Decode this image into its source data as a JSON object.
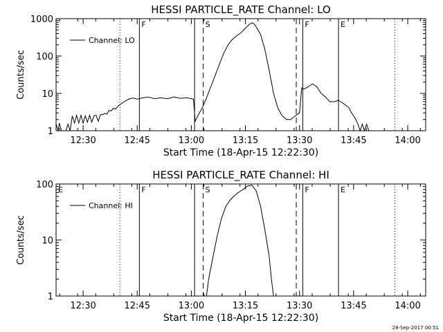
{
  "footer_timestamp": "28-Sep-2017 00:51",
  "chart_data": [
    {
      "type": "line",
      "title": "HESSI PARTICLE_RATE Channel: LO",
      "xlabel": "Start Time (18-Apr-15 12:22:30)",
      "ylabel": "Counts/sec",
      "yscale": "log",
      "ylim": [
        1,
        1000
      ],
      "xlim": [
        12.375,
        14.083
      ],
      "x_ticks": [
        {
          "v": 12.5,
          "label": "12:30"
        },
        {
          "v": 12.75,
          "label": "12:45"
        },
        {
          "v": 13.0,
          "label": "13:00"
        },
        {
          "v": 13.25,
          "label": "13:15"
        },
        {
          "v": 13.5,
          "label": "13:30"
        },
        {
          "v": 13.75,
          "label": "13:45"
        },
        {
          "v": 14.0,
          "label": "14:00"
        }
      ],
      "y_ticks": [
        {
          "v": 1,
          "label": "1"
        },
        {
          "v": 10,
          "label": "10"
        },
        {
          "v": 100,
          "label": "100"
        },
        {
          "v": 1000,
          "label": "1000"
        }
      ],
      "legend": {
        "label": "Channel: LO",
        "placement": "top-left"
      },
      "markers": [
        {
          "t": 12.67,
          "style": "dotted",
          "label": ""
        },
        {
          "t": 12.76,
          "style": "solid",
          "label": "F"
        },
        {
          "t": 13.015,
          "style": "solid",
          "label": ""
        },
        {
          "t": 13.055,
          "style": "dashed",
          "label": "S"
        },
        {
          "t": 13.485,
          "style": "dashed",
          "label": ""
        },
        {
          "t": 13.515,
          "style": "solid",
          "label": "F"
        },
        {
          "t": 13.68,
          "style": "solid",
          "label": "E"
        },
        {
          "t": 13.94,
          "style": "dotted",
          "label": ""
        }
      ],
      "series": [
        {
          "x": [
            12.375,
            12.385,
            12.39,
            12.4,
            12.41,
            12.42,
            12.43,
            12.44,
            12.45,
            12.46,
            12.47,
            12.48,
            12.49,
            12.5,
            12.51,
            12.52,
            12.53,
            12.54,
            12.55,
            12.56,
            12.57,
            12.58,
            12.59,
            12.6,
            12.61,
            12.62,
            12.63,
            12.64,
            12.65,
            12.66,
            12.67,
            12.69,
            12.71,
            12.73,
            12.75,
            12.77,
            12.8,
            12.83,
            12.86,
            12.89,
            12.92,
            12.95,
            12.98,
            13.01,
            13.018,
            13.03,
            13.05,
            13.07,
            13.09,
            13.11,
            13.13,
            13.15,
            13.17,
            13.19,
            13.21,
            13.23,
            13.25,
            13.27,
            13.285,
            13.3,
            13.32,
            13.34,
            13.36,
            13.38,
            13.4,
            13.42,
            13.44,
            13.46,
            13.48,
            13.5,
            13.51,
            13.52,
            13.54,
            13.56,
            13.58,
            13.6,
            13.62,
            13.64,
            13.66,
            13.68,
            13.69,
            13.7,
            13.72,
            13.73,
            13.74,
            13.75,
            13.76,
            13.77,
            13.78,
            13.79,
            13.8,
            13.81,
            13.82,
            13.83,
            13.84,
            13.85
          ],
          "y": [
            1.5,
            1.0,
            1.6,
            1.0,
            1.0,
            1.0,
            1.5,
            1.0,
            2.5,
            1.6,
            2.6,
            1.6,
            2.6,
            1.6,
            2.5,
            1.7,
            2.6,
            1.7,
            2.5,
            2.6,
            1.8,
            2.7,
            2.7,
            2.9,
            2.8,
            3.5,
            3.4,
            4.0,
            3.8,
            4.5,
            5.0,
            6.0,
            7.0,
            7.5,
            7.0,
            7.5,
            8.0,
            7.2,
            7.6,
            7.2,
            8.0,
            7.4,
            7.6,
            7.0,
            1.8,
            2.5,
            4.0,
            7.5,
            15,
            30,
            60,
            120,
            200,
            280,
            350,
            420,
            560,
            720,
            780,
            600,
            380,
            150,
            40,
            10,
            4,
            2.5,
            2.0,
            2.0,
            2.5,
            3.0,
            14,
            13,
            15,
            18,
            15,
            10,
            8,
            6,
            6,
            6.5,
            6.0,
            5.5,
            4.5,
            4.0,
            3.0,
            2.5,
            2.0,
            1.5,
            1.0,
            1.5,
            1.0,
            1.5,
            1.0,
            1.0,
            1.0,
            1.0
          ]
        }
      ]
    },
    {
      "type": "line",
      "title": "HESSI PARTICLE_RATE Channel: HI",
      "xlabel": "Start Time (18-Apr-15 12:22:30)",
      "ylabel": "Counts/sec",
      "yscale": "log",
      "ylim": [
        1,
        100
      ],
      "xlim": [
        12.375,
        14.083
      ],
      "x_ticks": [
        {
          "v": 12.5,
          "label": "12:30"
        },
        {
          "v": 12.75,
          "label": "12:45"
        },
        {
          "v": 13.0,
          "label": "13:00"
        },
        {
          "v": 13.25,
          "label": "13:15"
        },
        {
          "v": 13.5,
          "label": "13:30"
        },
        {
          "v": 13.75,
          "label": "13:45"
        },
        {
          "v": 14.0,
          "label": "14:00"
        }
      ],
      "y_ticks": [
        {
          "v": 1,
          "label": "1"
        },
        {
          "v": 10,
          "label": "10"
        },
        {
          "v": 100,
          "label": "100"
        }
      ],
      "legend": {
        "label": "Channel: HI",
        "placement": "top-left"
      },
      "markers": [
        {
          "t": 12.375,
          "style": "solid",
          "label": "E"
        },
        {
          "t": 12.67,
          "style": "dotted",
          "label": ""
        },
        {
          "t": 12.76,
          "style": "solid",
          "label": "F"
        },
        {
          "t": 13.015,
          "style": "solid",
          "label": ""
        },
        {
          "t": 13.055,
          "style": "dashed",
          "label": "S"
        },
        {
          "t": 13.485,
          "style": "dashed",
          "label": ""
        },
        {
          "t": 13.515,
          "style": "solid",
          "label": "F"
        },
        {
          "t": 13.68,
          "style": "solid",
          "label": "E"
        },
        {
          "t": 13.94,
          "style": "dotted",
          "label": ""
        }
      ],
      "series": [
        {
          "x": [
            13.07,
            13.08,
            13.1,
            13.12,
            13.14,
            13.16,
            13.18,
            13.2,
            13.22,
            13.24,
            13.26,
            13.28,
            13.3,
            13.32,
            13.34,
            13.36,
            13.37,
            13.38
          ],
          "y": [
            1.0,
            2.0,
            5.0,
            12,
            25,
            40,
            52,
            62,
            72,
            80,
            92,
            95,
            75,
            40,
            15,
            5,
            2,
            1.0
          ]
        }
      ]
    }
  ]
}
